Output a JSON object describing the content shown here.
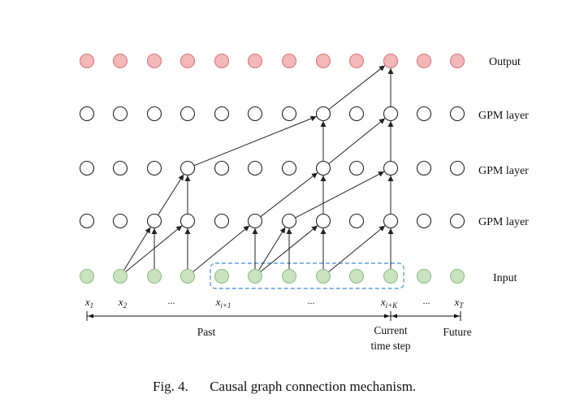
{
  "diagram": {
    "row_labels": {
      "output": "Output",
      "gpm3": "GPM layer",
      "gpm2": "GPM layer",
      "gpm1": "GPM layer",
      "input": "Input"
    },
    "x_labels": [
      {
        "base": "x",
        "sub": "1"
      },
      {
        "base": "x",
        "sub": "2"
      },
      {
        "text": "..."
      },
      {
        "base": "x",
        "sub": "i+1"
      },
      {
        "text": "..."
      },
      {
        "base": "x",
        "sub": "i+K"
      },
      {
        "text": "..."
      },
      {
        "base": "x",
        "sub": "T"
      }
    ],
    "timeline": {
      "past": "Past",
      "current_line1": "Current",
      "current_line2": "time step",
      "future": "Future"
    },
    "colors": {
      "output_fill": "#f4b8b8",
      "output_stroke": "#d9767a",
      "input_fill": "#c9e2c0",
      "input_stroke": "#8fbf83",
      "hidden_fill": "#ffffff",
      "hidden_stroke": "#222222",
      "window_box": "#5a9fe0",
      "arrow": "#222222"
    }
  },
  "caption": {
    "label": "Fig. 4.",
    "text": "Causal graph connection mechanism."
  }
}
